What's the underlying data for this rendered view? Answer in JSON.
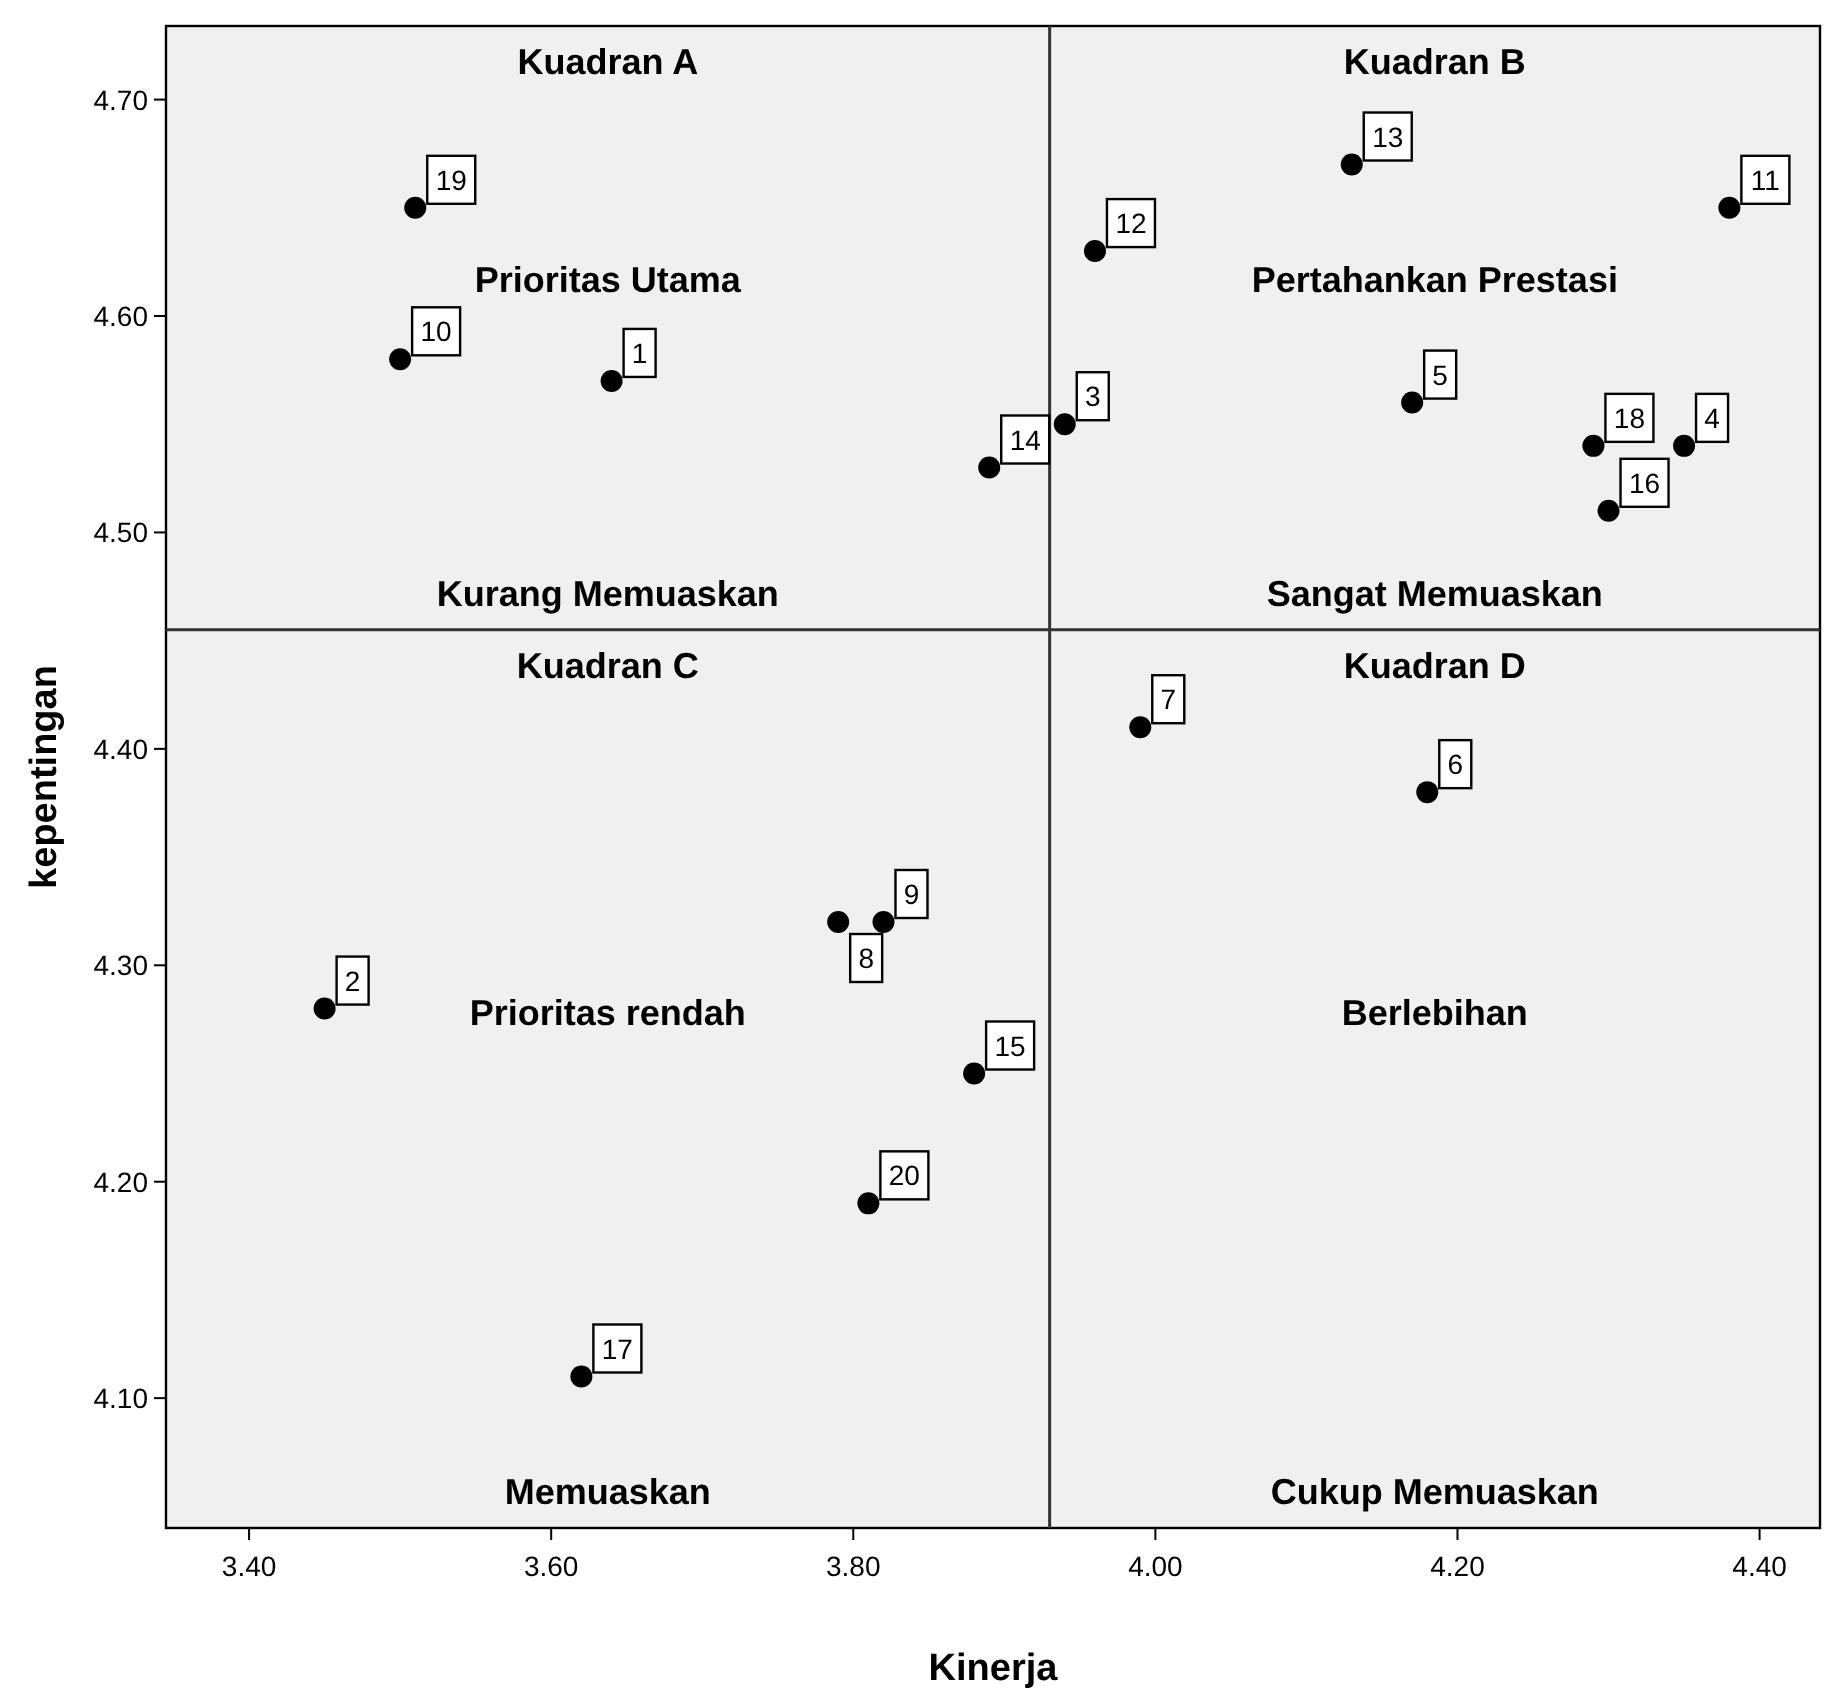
{
  "chart_data": {
    "type": "scatter",
    "xlabel": "Kinerja",
    "ylabel": "kepentingan",
    "x": [
      3.64,
      3.45,
      3.94,
      4.35,
      4.17,
      4.18,
      3.99,
      3.79,
      3.82,
      3.5,
      4.38,
      3.96,
      4.13,
      3.89,
      3.88,
      4.3,
      3.62,
      4.29,
      3.51,
      3.81
    ],
    "series": [
      {
        "color": "#000000",
        "values": [
          4.57,
          4.28,
          4.55,
          4.54,
          4.56,
          4.38,
          4.41,
          4.32,
          4.32,
          4.58,
          4.65,
          4.63,
          4.67,
          4.53,
          4.25,
          4.51,
          4.11,
          4.54,
          4.65,
          4.19
        ]
      }
    ],
    "marker": "circle",
    "xlim": [
      3.345,
      4.44
    ],
    "ylim": [
      4.04,
      4.734
    ],
    "xticks": [
      {
        "value": 3.4,
        "label": "3.40"
      },
      {
        "value": 3.6,
        "label": "3.60"
      },
      {
        "value": 3.8,
        "label": "3.80"
      },
      {
        "value": 4.0,
        "label": "4.00"
      },
      {
        "value": 4.2,
        "label": "4.20"
      },
      {
        "value": 4.4,
        "label": "4.40"
      }
    ],
    "yticks": [
      {
        "value": 4.1,
        "label": "4.10"
      },
      {
        "value": 4.2,
        "label": "4.20"
      },
      {
        "value": 4.3,
        "label": "4.30"
      },
      {
        "value": 4.4,
        "label": "4.40"
      },
      {
        "value": 4.5,
        "label": "4.50"
      },
      {
        "value": 4.6,
        "label": "4.60"
      },
      {
        "value": 4.7,
        "label": "4.70"
      }
    ],
    "grid": false,
    "ref_lines": [
      {
        "axis": "x",
        "value": 3.93
      },
      {
        "axis": "y",
        "value": 4.455
      }
    ],
    "annotations": [
      "Kuadran A",
      "Prioritas Utama",
      "Kurang Memuaskan",
      "Kuadran B",
      "Pertahankan Prestasi",
      "Sangat Memuaskan",
      "Kuadran C",
      "Prioritas rendah",
      "Memuaskan",
      "Kuadran D",
      "Berlebihan",
      "Cukup Memuaskan",
      {
        "text": "1",
        "x": 3.64,
        "y": 4.57
      },
      {
        "text": "2",
        "x": 3.45,
        "y": 4.28
      },
      {
        "text": "3",
        "x": 3.94,
        "y": 4.55
      },
      {
        "text": "4",
        "x": 4.35,
        "y": 4.54
      },
      {
        "text": "5",
        "x": 4.17,
        "y": 4.56
      },
      {
        "text": "6",
        "x": 4.18,
        "y": 4.38
      },
      {
        "text": "7",
        "x": 3.99,
        "y": 4.41
      },
      {
        "text": "8",
        "x": 3.79,
        "y": 4.32
      },
      {
        "text": "9",
        "x": 3.82,
        "y": 4.32
      },
      {
        "text": "10",
        "x": 3.5,
        "y": 4.58
      },
      {
        "text": "11",
        "x": 4.38,
        "y": 4.65
      },
      {
        "text": "12",
        "x": 3.96,
        "y": 4.63
      },
      {
        "text": "13",
        "x": 4.13,
        "y": 4.67
      },
      {
        "text": "14",
        "x": 3.89,
        "y": 4.53
      },
      {
        "text": "15",
        "x": 3.88,
        "y": 4.25
      },
      {
        "text": "16",
        "x": 4.3,
        "y": 4.51
      },
      {
        "text": "17",
        "x": 3.62,
        "y": 4.11
      },
      {
        "text": "18",
        "x": 4.29,
        "y": 4.54
      },
      {
        "text": "19",
        "x": 3.51,
        "y": 4.65
      },
      {
        "text": "20",
        "x": 3.81,
        "y": 4.19
      }
    ]
  }
}
